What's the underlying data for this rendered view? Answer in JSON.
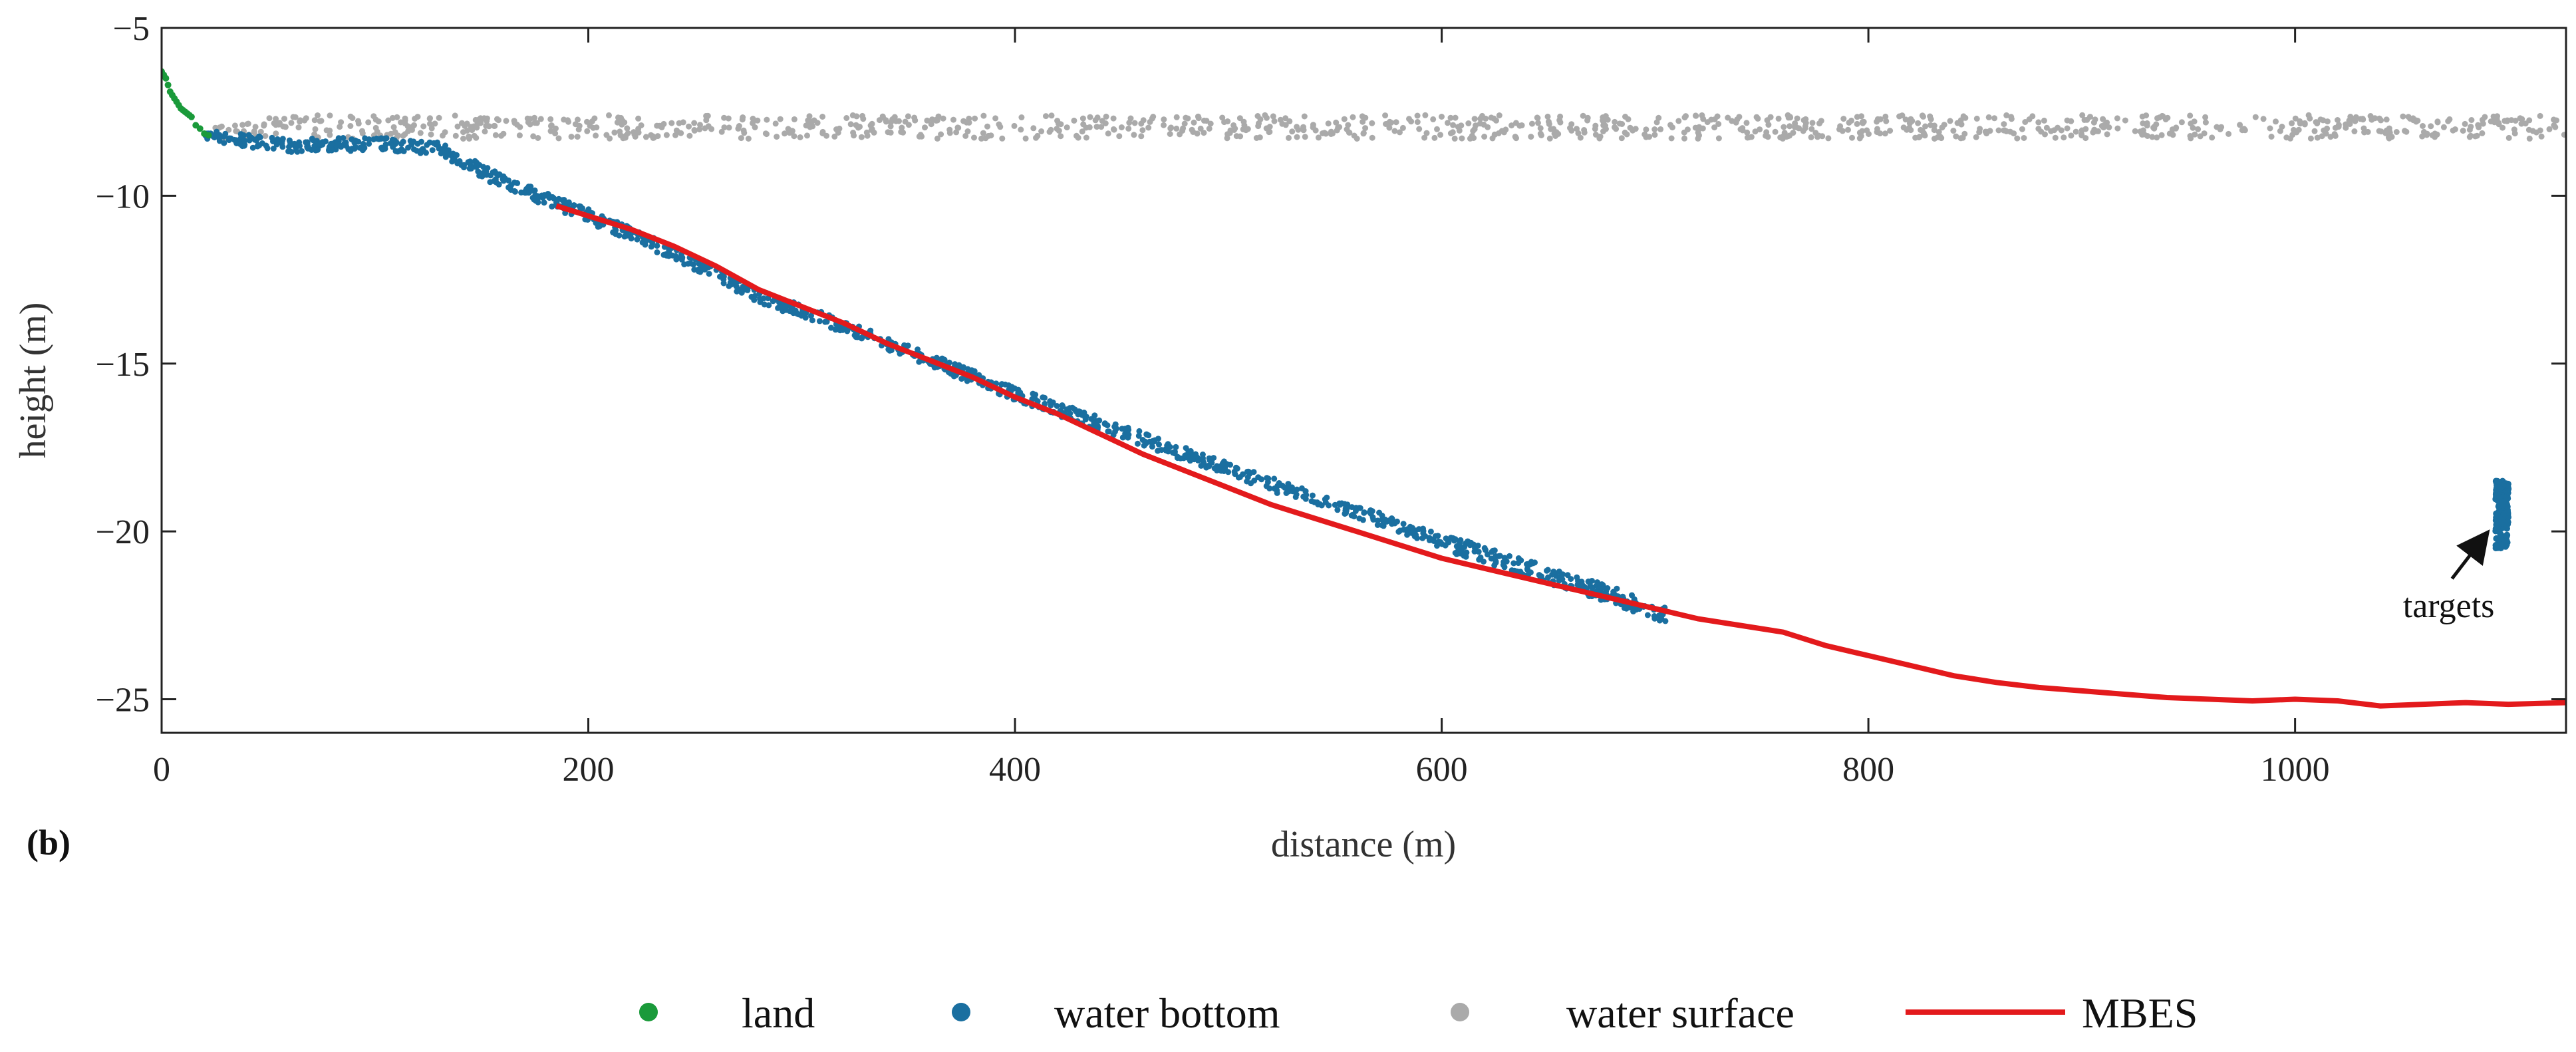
{
  "chart_data": {
    "type": "scatter",
    "panel_label": "(b)",
    "xlabel": "distance (m)",
    "ylabel": "height (m)",
    "xlim": [
      0,
      1127
    ],
    "ylim": [
      -26,
      -5
    ],
    "xticks": [
      0,
      200,
      400,
      600,
      800,
      1000
    ],
    "yticks": [
      -5,
      -10,
      -15,
      -20,
      -25
    ],
    "xtick_labels": [
      "0",
      "200",
      "400",
      "600",
      "800",
      "1000"
    ],
    "ytick_labels": [
      "−5",
      "−10",
      "−15",
      "−20",
      "−25"
    ],
    "grid": false,
    "legend_position": "bottom",
    "series": [
      {
        "name": "land",
        "kind": "points",
        "color": "#1a9a3a",
        "x": [
          0,
          1,
          2,
          3,
          4,
          5,
          6,
          7,
          8,
          9,
          10,
          11,
          12,
          13,
          14,
          16,
          18,
          20,
          22
        ],
        "y": [
          -6.3,
          -6.4,
          -6.5,
          -6.7,
          -6.9,
          -7.0,
          -7.1,
          -7.2,
          -7.3,
          -7.4,
          -7.45,
          -7.5,
          -7.55,
          -7.6,
          -7.65,
          -7.9,
          -8.0,
          -8.15,
          -8.2
        ]
      },
      {
        "name": "water bottom",
        "kind": "points",
        "color": "#1a6fa0",
        "profile_x": [
          20,
          60,
          100,
          130,
          160,
          200,
          240,
          280,
          320,
          360,
          400,
          440,
          480,
          520,
          560,
          600,
          640,
          680,
          705
        ],
        "profile_y": [
          -8.2,
          -8.5,
          -8.45,
          -8.6,
          -9.6,
          -10.6,
          -11.7,
          -13.0,
          -13.9,
          -14.9,
          -15.9,
          -16.8,
          -17.7,
          -18.6,
          -19.4,
          -20.3,
          -21.1,
          -21.9,
          -22.5
        ],
        "cluster": {
          "x": 1097,
          "y_min": -20.5,
          "y_max": -18.5
        }
      },
      {
        "name": "water surface",
        "kind": "points",
        "color": "#aaaaaa",
        "x_range": [
          25,
          1127
        ],
        "y_mean": -7.95,
        "y_spread": 0.35
      },
      {
        "name": "MBES",
        "kind": "line",
        "color": "#e31a1c",
        "x": [
          185,
          200,
          220,
          240,
          260,
          280,
          300,
          320,
          340,
          360,
          380,
          400,
          420,
          440,
          460,
          480,
          500,
          520,
          540,
          560,
          580,
          600,
          620,
          640,
          660,
          680,
          700,
          720,
          740,
          760,
          780,
          800,
          820,
          840,
          860,
          880,
          900,
          920,
          940,
          960,
          980,
          1000,
          1020,
          1040,
          1060,
          1080,
          1100,
          1127
        ],
        "y": [
          -10.3,
          -10.6,
          -11.0,
          -11.5,
          -12.1,
          -12.8,
          -13.3,
          -13.8,
          -14.4,
          -14.9,
          -15.4,
          -16.0,
          -16.5,
          -17.1,
          -17.7,
          -18.2,
          -18.7,
          -19.2,
          -19.6,
          -20.0,
          -20.4,
          -20.8,
          -21.1,
          -21.4,
          -21.7,
          -22.0,
          -22.3,
          -22.6,
          -22.8,
          -23.0,
          -23.4,
          -23.7,
          -24.0,
          -24.3,
          -24.5,
          -24.65,
          -24.75,
          -24.85,
          -24.95,
          -25.0,
          -25.05,
          -25.0,
          -25.05,
          -25.2,
          -25.15,
          -25.1,
          -25.15,
          -25.1
        ]
      }
    ],
    "annotations": [
      {
        "text": "targets",
        "arrow_to": {
          "x": 1095,
          "y": -19.9
        },
        "text_at": {
          "x": 1072,
          "y": -22.2
        }
      }
    ]
  }
}
